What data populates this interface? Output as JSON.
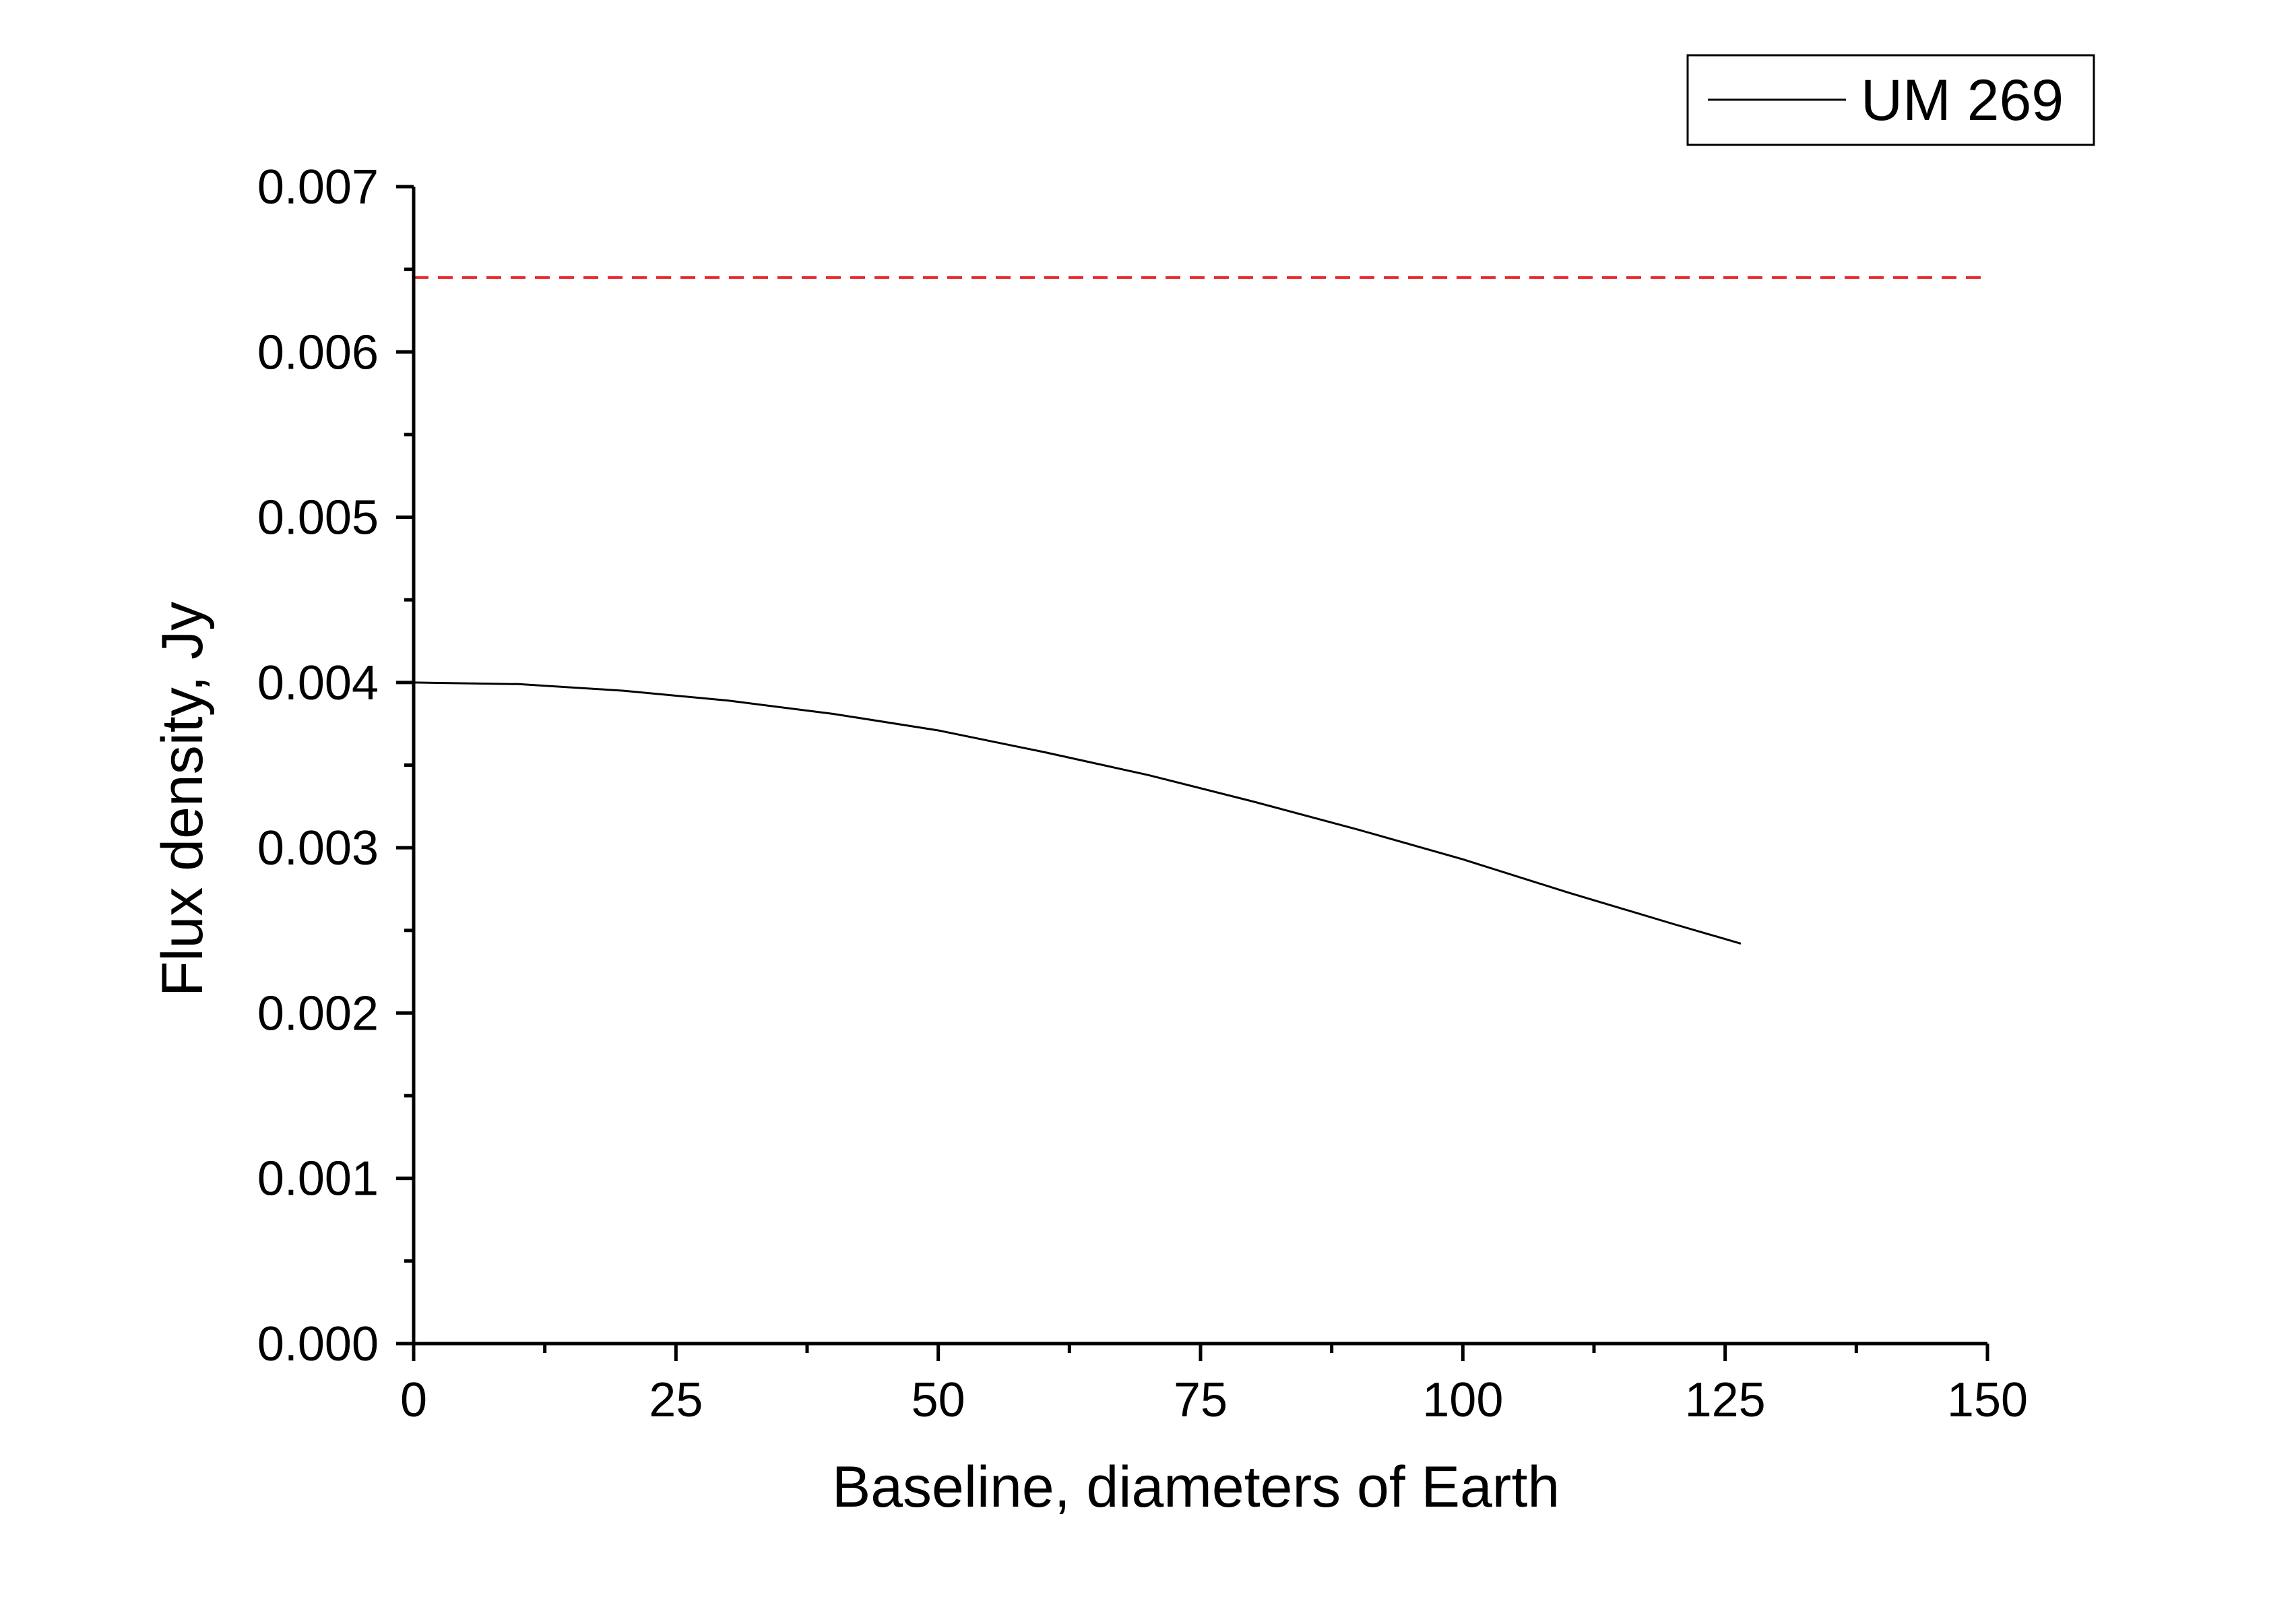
{
  "chart_data": {
    "type": "line",
    "title": "",
    "xlabel": "Baseline, diameters of Earth",
    "ylabel": "Flux density, Jy",
    "xlim": [
      0,
      150
    ],
    "ylim": [
      0,
      0.007
    ],
    "x_ticks": [
      0,
      25,
      50,
      75,
      100,
      125,
      150
    ],
    "x_tick_labels": [
      "0",
      "25",
      "50",
      "75",
      "100",
      "125",
      "150"
    ],
    "y_ticks": [
      0,
      0.001,
      0.002,
      0.003,
      0.004,
      0.005,
      0.006,
      0.007
    ],
    "y_tick_labels": [
      "0.000",
      "0.001",
      "0.002",
      "0.003",
      "0.004",
      "0.005",
      "0.006",
      "0.007"
    ],
    "grid": false,
    "legend_position": "top-right",
    "series": [
      {
        "name": "UM 269",
        "color": "#000000",
        "style": "solid",
        "x": [
          0,
          10,
          20,
          30,
          40,
          50,
          60,
          70,
          80,
          90,
          100,
          110,
          120,
          126.5
        ],
        "y": [
          0.004,
          0.00399,
          0.00395,
          0.00389,
          0.00381,
          0.00371,
          0.00358,
          0.00344,
          0.00328,
          0.00311,
          0.00293,
          0.00273,
          0.00254,
          0.00242
        ]
      },
      {
        "color": "#e8282b",
        "style": "dashed",
        "x": [
          0,
          150
        ],
        "y": [
          0.00645,
          0.00645
        ]
      }
    ]
  }
}
